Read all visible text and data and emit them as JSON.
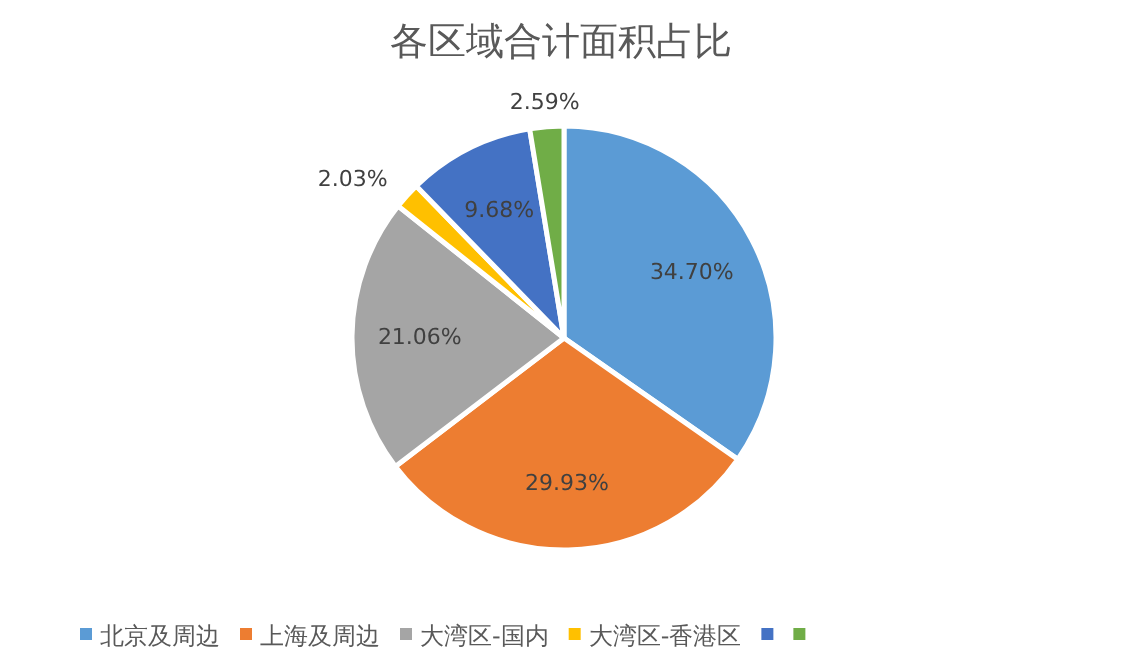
{
  "chart_data": {
    "type": "pie",
    "title": "各区域合计面积占比",
    "categories": [
      "北京及周边",
      "上海及周边",
      "大湾区-国内",
      "大湾区-香港区",
      null,
      null
    ],
    "values": [
      34.7,
      29.93,
      21.06,
      2.03,
      9.68,
      2.59
    ],
    "value_labels": [
      "34.70%",
      "29.93%",
      "21.06%",
      "2.03%",
      "9.68%",
      "2.59%"
    ],
    "colors": [
      "#5b9bd5",
      "#ed7d31",
      "#a5a5a5",
      "#ffc000",
      "#4472c4",
      "#70ad47"
    ],
    "legend": "bottom"
  }
}
